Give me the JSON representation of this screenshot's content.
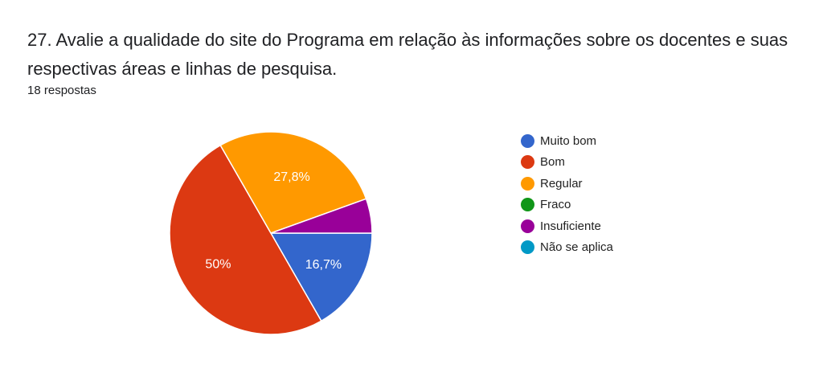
{
  "question": {
    "title": "27. Avalie a qualidade do site do Programa em relação às informações sobre os docentes e suas respectivas áreas e linhas de pesquisa.",
    "responses": "18 respostas"
  },
  "chart_data": {
    "type": "pie",
    "title": "",
    "legend_position": "right",
    "slices": [
      {
        "label": "Muito bom",
        "value": 16.7,
        "display": "16,7%",
        "color": "#3366cc"
      },
      {
        "label": "Bom",
        "value": 50.0,
        "display": "50%",
        "color": "#dc3912"
      },
      {
        "label": "Regular",
        "value": 27.8,
        "display": "27,8%",
        "color": "#ff9900"
      },
      {
        "label": "Fraco",
        "value": 0,
        "display": "",
        "color": "#109618"
      },
      {
        "label": "Insuficiente",
        "value": 5.5,
        "display": "",
        "color": "#990099"
      },
      {
        "label": "Não se aplica",
        "value": 0,
        "display": "",
        "color": "#0099c6"
      }
    ]
  }
}
